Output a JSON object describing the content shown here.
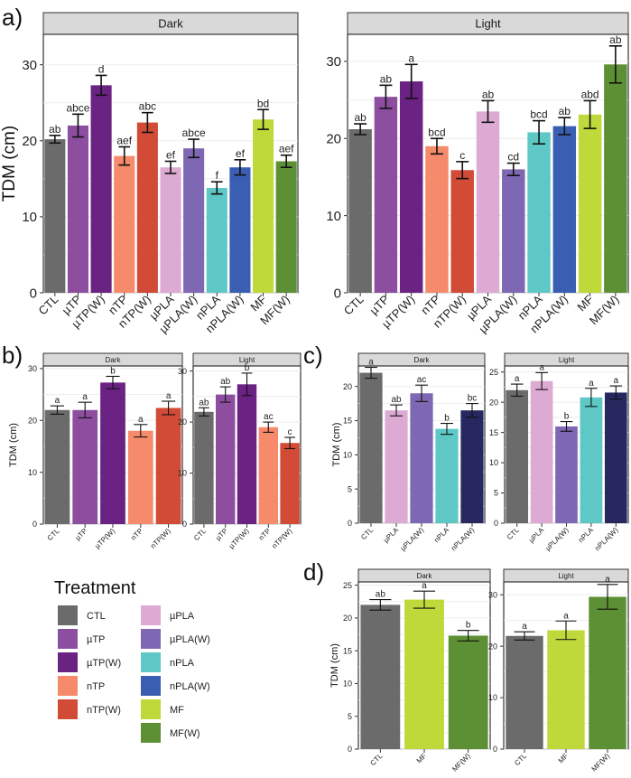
{
  "figure_labels": [
    "a)",
    "b)",
    "c)",
    "d)"
  ],
  "treatment_colors": {
    "CTL": "#6b6b6b",
    "µTP": "#8e4ea0",
    "µTP(W)": "#6a2283",
    "nTP": "#f58b6b",
    "nTP(W)": "#d24b36",
    "µPLA": "#dcaad3",
    "µPLA(W)": "#7f68b3",
    "nPLA": "#5ec8c6",
    "nPLA(W)": "#3a5fb2",
    "nPLA(W)_c": "#26285f",
    "MF": "#bfd83a",
    "MF(W)": "#5d8f34"
  },
  "legend": {
    "title": "Treatment",
    "items": [
      "CTL",
      "µTP",
      "µTP(W)",
      "nTP",
      "nTP(W)",
      "µPLA",
      "µPLA(W)",
      "nPLA",
      "nPLA(W)",
      "MF",
      "MF(W)"
    ]
  },
  "chart_data": [
    {
      "panel": "a)",
      "type": "bar",
      "strip": "Dark",
      "ylabel": "TDM (cm)",
      "ylim": [
        0,
        34
      ],
      "yticks": [
        0,
        10,
        20,
        30
      ],
      "categories": [
        "CTL",
        "µTP",
        "µTP(W)",
        "nTP",
        "nTP(W)",
        "µPLA",
        "µPLA(W)",
        "nPLA",
        "nPLA(W)",
        "MF",
        "MF(W)"
      ],
      "values": [
        20.2,
        22.0,
        27.3,
        18.0,
        22.4,
        16.5,
        19.0,
        13.8,
        16.5,
        22.8,
        17.3
      ],
      "errors": [
        0.5,
        1.5,
        1.3,
        1.2,
        1.3,
        0.8,
        1.2,
        0.8,
        1.0,
        1.3,
        0.8
      ],
      "letters": [
        "ab",
        "abce",
        "d",
        "aef",
        "abc",
        "ef",
        "abce",
        "f",
        "ef",
        "bd",
        "aef"
      ]
    },
    {
      "panel": "a)",
      "type": "bar",
      "strip": "Light",
      "ylabel": "",
      "ylim": [
        0,
        33.5
      ],
      "yticks": [
        0,
        10,
        20,
        30
      ],
      "categories": [
        "CTL",
        "µTP",
        "µTP(W)",
        "nTP",
        "nTP(W)",
        "µPLA",
        "µPLA(W)",
        "nPLA",
        "nPLA(W)",
        "MF",
        "MF(W)"
      ],
      "values": [
        21.2,
        25.4,
        27.4,
        19.0,
        15.9,
        23.5,
        16.0,
        20.8,
        21.6,
        23.1,
        29.6
      ],
      "errors": [
        0.7,
        1.5,
        2.2,
        1.0,
        1.1,
        1.4,
        0.8,
        1.5,
        1.1,
        1.8,
        2.4
      ],
      "letters": [
        "ab",
        "ab",
        "a",
        "bcd",
        "c",
        "ab",
        "cd",
        "bcd",
        "ab",
        "abd",
        "ab"
      ]
    },
    {
      "panel": "b)",
      "type": "bar",
      "strip": "Dark",
      "ylabel": "TDM (cm)",
      "ylim": [
        0,
        30.5
      ],
      "yticks": [
        0,
        10,
        20,
        30
      ],
      "categories": [
        "CTL",
        "µTP",
        "µTP(W)",
        "nTP",
        "nTP(W)"
      ],
      "values": [
        22.0,
        22.0,
        27.3,
        18.0,
        22.4
      ],
      "errors": [
        0.8,
        1.5,
        1.2,
        1.2,
        1.3
      ],
      "letters": [
        "a",
        "a",
        "b",
        "a",
        "a"
      ]
    },
    {
      "panel": "b)",
      "type": "bar",
      "strip": "Light",
      "ylabel": "",
      "ylim": [
        0,
        31
      ],
      "yticks": [
        0,
        10,
        20,
        30
      ],
      "categories": [
        "CTL",
        "µTP",
        "µTP(W)",
        "nTP",
        "nTP(W)"
      ],
      "values": [
        22.0,
        25.4,
        27.4,
        19.0,
        15.9
      ],
      "errors": [
        0.8,
        1.5,
        2.2,
        1.0,
        1.1
      ],
      "letters": [
        "ab",
        "ab",
        "b",
        "ac",
        "c"
      ]
    },
    {
      "panel": "c)",
      "type": "bar",
      "strip": "Dark",
      "ylabel": "TDM (cm)",
      "ylim": [
        0,
        23
      ],
      "yticks": [
        0,
        5,
        10,
        15,
        20
      ],
      "categories": [
        "CTL",
        "µPLA",
        "µPLA(W)",
        "nPLA",
        "nPLA(W)"
      ],
      "values": [
        22.0,
        16.5,
        19.0,
        13.8,
        16.5
      ],
      "errors": [
        0.8,
        0.8,
        1.2,
        0.8,
        1.0
      ],
      "letters": [
        "a",
        "ab",
        "ac",
        "b",
        "bc"
      ]
    },
    {
      "panel": "c)",
      "type": "bar",
      "strip": "Light",
      "ylabel": "",
      "ylim": [
        0,
        26
      ],
      "yticks": [
        0,
        5,
        10,
        15,
        20,
        25
      ],
      "categories": [
        "CTL",
        "µPLA",
        "µPLA(W)",
        "nPLA",
        "nPLA(W)"
      ],
      "values": [
        22.0,
        23.5,
        16.0,
        20.8,
        21.6
      ],
      "errors": [
        1.0,
        1.4,
        0.8,
        1.5,
        1.1
      ],
      "letters": [
        "a",
        "a",
        "b",
        "a",
        "a"
      ]
    },
    {
      "panel": "d)",
      "type": "bar",
      "strip": "Dark",
      "ylabel": "TDM (cm)",
      "ylim": [
        0,
        25.5
      ],
      "yticks": [
        0,
        5,
        10,
        15,
        20,
        25
      ],
      "categories": [
        "CTL",
        "MF",
        "MF(W)"
      ],
      "values": [
        22.0,
        22.8,
        17.3
      ],
      "errors": [
        0.8,
        1.3,
        0.8
      ],
      "letters": [
        "ab",
        "a",
        "b"
      ]
    },
    {
      "panel": "d)",
      "type": "bar",
      "strip": "Light",
      "ylabel": "",
      "ylim": [
        0,
        32.5
      ],
      "yticks": [
        0,
        10,
        20,
        30
      ],
      "categories": [
        "CTL",
        "MF",
        "MF(W)"
      ],
      "values": [
        22.0,
        23.1,
        29.6
      ],
      "errors": [
        0.8,
        1.8,
        2.4
      ],
      "letters": [
        "a",
        "a",
        "a"
      ]
    }
  ]
}
